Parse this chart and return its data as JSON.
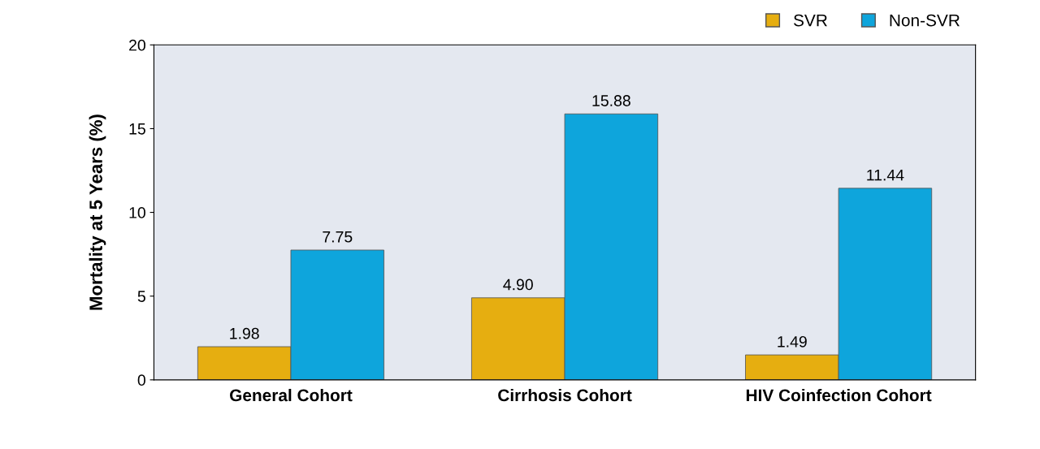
{
  "chart_data": {
    "type": "bar",
    "ylabel": "Mortality at 5 Years (%)",
    "categories": [
      "General Cohort",
      "Cirrhosis Cohort",
      "HIV Coinfection Cohort"
    ],
    "series": [
      {
        "name": "SVR",
        "color": "#e6ae10",
        "values": [
          1.98,
          4.9,
          1.49
        ],
        "value_labels": [
          "1.98",
          "4.90",
          "1.49"
        ]
      },
      {
        "name": "Non-SVR",
        "color": "#0ea5dc",
        "values": [
          7.75,
          15.88,
          11.44
        ],
        "value_labels": [
          "7.75",
          "15.88",
          "11.44"
        ]
      }
    ],
    "ylim": [
      0,
      20
    ],
    "yticks": [
      0,
      5,
      10,
      15,
      20
    ],
    "grid": false,
    "legend": "top right"
  }
}
